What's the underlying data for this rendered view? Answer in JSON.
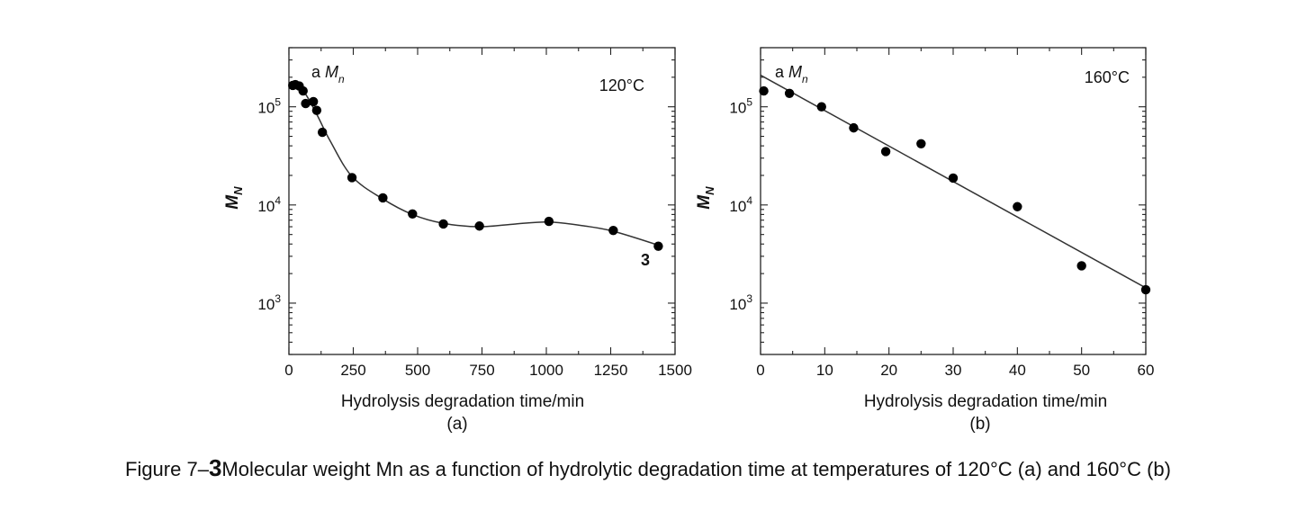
{
  "caption": {
    "prefix": "Figure 7–",
    "number": "3",
    "text": "Molecular weight Mn as a function of hydrolytic degradation time at temperatures of 120°C (a) and 160°C (b)"
  },
  "chart_data": [
    {
      "type": "scatter",
      "panel_label": "(a)",
      "series_label_prefix": "a",
      "series_label_var": "M",
      "series_label_sub": "n",
      "temperature_label": "120°C",
      "curve_label": "3",
      "xlabel": "Hydrolysis degradation time/min",
      "ylabel_var": "M",
      "ylabel_sub": "N",
      "yscale": "log",
      "xlim": [
        0,
        1500
      ],
      "ylim": [
        300,
        400000
      ],
      "xticks": [
        0,
        250,
        500,
        750,
        1000,
        1250,
        1500
      ],
      "xtick_labels": [
        "0",
        "250",
        "500",
        "750",
        "1000",
        "1250",
        "1500"
      ],
      "yticks": [
        1000,
        10000,
        100000
      ],
      "ytick_labels": [
        {
          "base": "10",
          "exp": "3"
        },
        {
          "base": "10",
          "exp": "4"
        },
        {
          "base": "10",
          "exp": "5"
        }
      ],
      "points": [
        {
          "x": 15,
          "y": 165000
        },
        {
          "x": 25,
          "y": 168000
        },
        {
          "x": 40,
          "y": 163000
        },
        {
          "x": 55,
          "y": 145000
        },
        {
          "x": 65,
          "y": 108000
        },
        {
          "x": 95,
          "y": 113000
        },
        {
          "x": 108,
          "y": 92000
        },
        {
          "x": 130,
          "y": 55000
        },
        {
          "x": 245,
          "y": 19000
        },
        {
          "x": 365,
          "y": 11800
        },
        {
          "x": 480,
          "y": 8100
        },
        {
          "x": 600,
          "y": 6400
        },
        {
          "x": 740,
          "y": 6100
        },
        {
          "x": 1010,
          "y": 6800
        },
        {
          "x": 1260,
          "y": 5500
        },
        {
          "x": 1435,
          "y": 3800
        }
      ],
      "fit_curve": [
        {
          "x": 15,
          "y": 170000
        },
        {
          "x": 60,
          "y": 140000
        },
        {
          "x": 110,
          "y": 82000
        },
        {
          "x": 160,
          "y": 45000
        },
        {
          "x": 245,
          "y": 19500
        },
        {
          "x": 365,
          "y": 11500
        },
        {
          "x": 480,
          "y": 8000
        },
        {
          "x": 600,
          "y": 6500
        },
        {
          "x": 740,
          "y": 6000
        },
        {
          "x": 880,
          "y": 6400
        },
        {
          "x": 1010,
          "y": 6700
        },
        {
          "x": 1150,
          "y": 6100
        },
        {
          "x": 1260,
          "y": 5400
        },
        {
          "x": 1435,
          "y": 3900
        }
      ]
    },
    {
      "type": "scatter",
      "panel_label": "(b)",
      "series_label_prefix": "a",
      "series_label_var": "M",
      "series_label_sub": "n",
      "temperature_label": "160°C",
      "xlabel": "Hydrolysis degradation time/min",
      "ylabel_var": "M",
      "ylabel_sub": "N",
      "yscale": "log",
      "xlim": [
        0,
        60
      ],
      "ylim": [
        300,
        400000
      ],
      "xticks": [
        0,
        10,
        20,
        30,
        40,
        50,
        60
      ],
      "xtick_labels": [
        "0",
        "10",
        "20",
        "30",
        "40",
        "50",
        "60"
      ],
      "yticks": [
        1000,
        10000,
        100000
      ],
      "ytick_labels": [
        {
          "base": "10",
          "exp": "3"
        },
        {
          "base": "10",
          "exp": "4"
        },
        {
          "base": "10",
          "exp": "5"
        }
      ],
      "points": [
        {
          "x": 0.5,
          "y": 145000
        },
        {
          "x": 4.5,
          "y": 137000
        },
        {
          "x": 9.5,
          "y": 100000
        },
        {
          "x": 14.5,
          "y": 61000
        },
        {
          "x": 19.5,
          "y": 35000
        },
        {
          "x": 25,
          "y": 42000
        },
        {
          "x": 30,
          "y": 18800
        },
        {
          "x": 40,
          "y": 9600
        },
        {
          "x": 50,
          "y": 2400
        },
        {
          "x": 60,
          "y": 1370
        }
      ],
      "fit_line": [
        {
          "x": 0,
          "y": 210000
        },
        {
          "x": 60,
          "y": 1430
        }
      ]
    }
  ]
}
